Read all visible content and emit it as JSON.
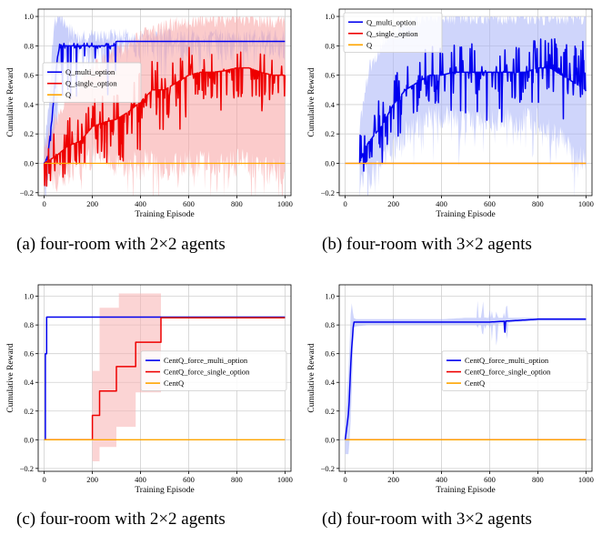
{
  "chart_data": [
    {
      "id": "a",
      "type": "line",
      "caption": "(a) four-room with 2×2 agents",
      "xlabel": "Training Episode",
      "ylabel": "Cumulative Reward",
      "xlim": [
        -25,
        1025
      ],
      "ylim": [
        -0.22,
        1.05
      ],
      "xticks": [
        0,
        200,
        400,
        600,
        800,
        1000
      ],
      "yticks": [
        -0.2,
        0.0,
        0.2,
        0.4,
        0.6,
        0.8,
        1.0
      ],
      "ytick_labels": [
        "−0.2",
        "0.0",
        "0.2",
        "0.4",
        "0.6",
        "0.8",
        "1.0"
      ],
      "grid": true,
      "legend_position": "center-left",
      "series": [
        {
          "name": "Q_multi_option",
          "color": "#0000ee",
          "band_color": "#9aa6f5",
          "style": "noisy",
          "x": [
            0,
            15,
            25,
            35,
            45,
            55,
            65,
            80,
            100,
            150,
            250,
            290,
            300,
            400,
            600,
            800,
            1000
          ],
          "y": [
            0.0,
            0.05,
            0.2,
            0.35,
            0.55,
            0.72,
            0.8,
            0.8,
            0.8,
            0.8,
            0.8,
            0.8,
            0.83,
            0.83,
            0.83,
            0.83,
            0.83
          ],
          "lo": [
            -0.12,
            -0.1,
            0.0,
            0.1,
            0.25,
            0.4,
            0.7,
            0.75,
            0.75,
            0.75,
            0.75,
            0.77,
            0.8,
            0.8,
            0.8,
            0.8,
            0.8
          ],
          "hi": [
            0.1,
            0.3,
            0.55,
            0.8,
            0.95,
            1.0,
            1.0,
            0.95,
            0.9,
            0.86,
            0.86,
            0.86,
            0.86,
            0.86,
            0.86,
            0.86,
            0.86
          ]
        },
        {
          "name": "Q_single_option",
          "color": "#ee0000",
          "band_color": "#f7a0a0",
          "style": "noisy",
          "x": [
            0,
            50,
            100,
            150,
            200,
            250,
            300,
            350,
            400,
            450,
            500,
            550,
            600,
            650,
            700,
            750,
            800,
            850,
            900,
            950,
            1000
          ],
          "y": [
            0.0,
            0.05,
            0.12,
            0.15,
            0.25,
            0.28,
            0.3,
            0.35,
            0.42,
            0.5,
            0.5,
            0.55,
            0.6,
            0.62,
            0.62,
            0.63,
            0.65,
            0.65,
            0.62,
            0.6,
            0.6
          ],
          "lo": [
            -0.05,
            -0.1,
            -0.05,
            0.0,
            0.05,
            0.05,
            0.0,
            0.0,
            0.0,
            0.0,
            -0.05,
            0.0,
            0.0,
            0.0,
            0.0,
            0.0,
            0.0,
            0.0,
            -0.05,
            -0.05,
            -0.05
          ],
          "hi": [
            0.15,
            0.3,
            0.45,
            0.55,
            0.65,
            0.7,
            0.75,
            0.8,
            0.85,
            0.9,
            0.92,
            0.95,
            0.97,
            0.98,
            0.98,
            0.98,
            0.98,
            0.98,
            0.98,
            0.98,
            0.98
          ]
        },
        {
          "name": "Q",
          "color": "#ffa500",
          "style": "flat",
          "x": [
            0,
            1000
          ],
          "y": [
            0.0,
            0.0
          ]
        }
      ]
    },
    {
      "id": "b",
      "type": "line",
      "caption": "(b) four-room with 3×2 agents",
      "xlabel": "Training Episode",
      "ylabel": "Cumulative Reward",
      "xlim": [
        -25,
        1025
      ],
      "ylim": [
        -0.22,
        1.05
      ],
      "xticks": [
        0,
        200,
        400,
        600,
        800,
        1000
      ],
      "yticks": [
        -0.2,
        0.0,
        0.2,
        0.4,
        0.6,
        0.8,
        1.0
      ],
      "ytick_labels": [
        "−0.2",
        "0.0",
        "0.2",
        "0.4",
        "0.6",
        "0.8",
        "1.0"
      ],
      "grid": true,
      "legend_position": "top-left",
      "series": [
        {
          "name": "Q_multi_option",
          "color": "#0000ee",
          "band_color": "#a8b2f7",
          "style": "noisy",
          "x": [
            60,
            80,
            100,
            150,
            200,
            250,
            300,
            350,
            400,
            450,
            500,
            550,
            600,
            650,
            700,
            750,
            800,
            850,
            900,
            950,
            1000
          ],
          "y": [
            0.0,
            0.1,
            0.15,
            0.25,
            0.4,
            0.5,
            0.55,
            0.6,
            0.6,
            0.62,
            0.62,
            0.62,
            0.62,
            0.62,
            0.62,
            0.62,
            0.65,
            0.65,
            0.6,
            0.55,
            0.5
          ],
          "lo": [
            -0.15,
            -0.1,
            -0.05,
            0.0,
            0.1,
            0.2,
            0.25,
            0.3,
            0.3,
            0.3,
            0.3,
            0.3,
            0.3,
            0.3,
            0.3,
            0.3,
            0.3,
            0.2,
            0.15,
            0.05,
            0.0
          ],
          "hi": [
            0.25,
            0.45,
            0.65,
            0.8,
            0.9,
            0.95,
            0.98,
            1.0,
            1.0,
            1.0,
            1.0,
            1.0,
            1.0,
            1.0,
            1.0,
            1.0,
            1.0,
            1.0,
            1.0,
            1.0,
            1.0
          ]
        },
        {
          "name": "Q_single_option",
          "color": "#ee0000",
          "style": "flat",
          "x": [
            0,
            1000
          ],
          "y": [
            0.0,
            0.0
          ]
        },
        {
          "name": "Q",
          "color": "#ffa500",
          "style": "flat",
          "x": [
            0,
            1000
          ],
          "y": [
            0.0,
            0.0
          ]
        }
      ]
    },
    {
      "id": "c",
      "type": "line",
      "caption": "(c) four-room with 2×2 agents",
      "xlabel": "Training Episode",
      "ylabel": "Cumulative Reward",
      "xlim": [
        -25,
        1025
      ],
      "ylim": [
        -0.22,
        1.08
      ],
      "xticks": [
        0,
        200,
        400,
        600,
        800,
        1000
      ],
      "yticks": [
        -0.2,
        0.0,
        0.2,
        0.4,
        0.6,
        0.8,
        1.0
      ],
      "ytick_labels": [
        "−0.2",
        "0.0",
        "0.2",
        "0.4",
        "0.6",
        "0.8",
        "1.0"
      ],
      "grid": true,
      "legend_position": "center-right",
      "series": [
        {
          "name": "CentQ_force_multi_option",
          "color": "#0000ee",
          "style": "step",
          "x": [
            0,
            5,
            10,
            1000
          ],
          "y": [
            0.0,
            0.6,
            0.855,
            0.855
          ]
        },
        {
          "name": "CentQ_force_single_option",
          "color": "#ee0000",
          "band_color": "#f7b0b0",
          "style": "step",
          "x": [
            0,
            185,
            200,
            230,
            300,
            310,
            380,
            480,
            485,
            1000
          ],
          "y": [
            0.0,
            0.0,
            0.17,
            0.34,
            0.51,
            0.51,
            0.68,
            0.68,
            0.85,
            0.85
          ],
          "lo": [
            0.0,
            0.0,
            -0.15,
            -0.05,
            0.09,
            0.09,
            0.33,
            0.33,
            0.85,
            0.85
          ],
          "hi": [
            0.0,
            0.0,
            0.48,
            0.92,
            0.92,
            1.02,
            1.02,
            1.02,
            0.85,
            0.85
          ]
        },
        {
          "name": "CentQ",
          "color": "#ffa500",
          "style": "flat",
          "x": [
            0,
            1000
          ],
          "y": [
            0.0,
            0.0
          ]
        }
      ]
    },
    {
      "id": "d",
      "type": "line",
      "caption": "(d) four-room with 3×2 agents",
      "xlabel": "Training Episode",
      "ylabel": "Cumulative Reward",
      "xlim": [
        -25,
        1025
      ],
      "ylim": [
        -0.22,
        1.08
      ],
      "xticks": [
        0,
        200,
        400,
        600,
        800,
        1000
      ],
      "yticks": [
        -0.2,
        0.0,
        0.2,
        0.4,
        0.6,
        0.8,
        1.0
      ],
      "ytick_labels": [
        "−0.2",
        "0.0",
        "0.2",
        "0.4",
        "0.6",
        "0.8",
        "1.0"
      ],
      "grid": true,
      "legend_position": "center-right",
      "series": [
        {
          "name": "CentQ_force_multi_option",
          "color": "#0000ee",
          "band_color": "#a8b2f7",
          "style": "multi_d",
          "x": [
            0,
            15,
            25,
            35,
            45,
            100,
            300,
            400,
            500,
            600,
            700,
            800,
            900,
            1000
          ],
          "y": [
            0.0,
            0.2,
            0.6,
            0.82,
            0.82,
            0.82,
            0.82,
            0.82,
            0.82,
            0.82,
            0.83,
            0.84,
            0.84,
            0.84
          ],
          "lo": [
            -0.1,
            -0.1,
            0.2,
            0.78,
            0.79,
            0.8,
            0.8,
            0.8,
            0.8,
            0.8,
            0.82,
            0.83,
            0.83,
            0.83
          ],
          "hi": [
            0.1,
            0.5,
            0.98,
            0.85,
            0.84,
            0.84,
            0.84,
            0.84,
            0.85,
            0.85,
            0.85,
            0.85,
            0.85,
            0.85
          ]
        },
        {
          "name": "CentQ_force_single_option",
          "color": "#ee0000",
          "style": "flat",
          "x": [
            0,
            1000
          ],
          "y": [
            0.0,
            0.0
          ]
        },
        {
          "name": "CentQ",
          "color": "#ffa500",
          "style": "flat",
          "x": [
            0,
            1000
          ],
          "y": [
            0.0,
            0.0
          ]
        }
      ]
    }
  ]
}
